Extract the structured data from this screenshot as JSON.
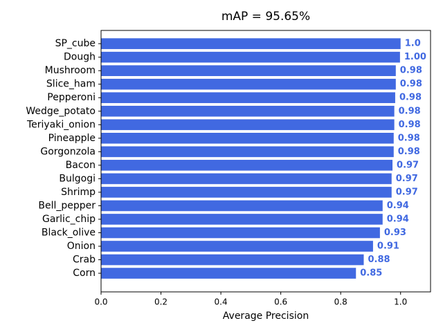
{
  "chart_data": {
    "type": "barh",
    "title": "mAP = 95.65%",
    "x_label": "Average Precision",
    "categories": [
      "SP_cube",
      "Dough",
      "Mushroom",
      "Slice_ham",
      "Pepperoni",
      "Wedge_potato",
      "Teriyaki_onion",
      "Pineapple",
      "Gorgonzola",
      "Bacon",
      "Bulgogi",
      "Shrimp",
      "Bell_pepper",
      "Garlic_chip",
      "Black_olive",
      "Onion",
      "Crab",
      "Corn"
    ],
    "values": [
      1.0,
      0.998,
      0.984,
      0.984,
      0.982,
      0.979,
      0.979,
      0.977,
      0.977,
      0.973,
      0.97,
      0.97,
      0.94,
      0.94,
      0.931,
      0.908,
      0.877,
      0.851
    ],
    "value_labels": [
      "1.0",
      "1.00",
      "0.98",
      "0.98",
      "0.98",
      "0.98",
      "0.98",
      "0.98",
      "0.98",
      "0.97",
      "0.97",
      "0.97",
      "0.94",
      "0.94",
      "0.93",
      "0.91",
      "0.88",
      "0.85"
    ],
    "color": "#4169e1",
    "xlim": [
      0,
      1.1
    ],
    "xticks": [
      {
        "value": 0,
        "label": "0.0"
      },
      0.2,
      0.4,
      0.6,
      0.8,
      {
        "value": 1,
        "label": "1.0"
      }
    ]
  }
}
